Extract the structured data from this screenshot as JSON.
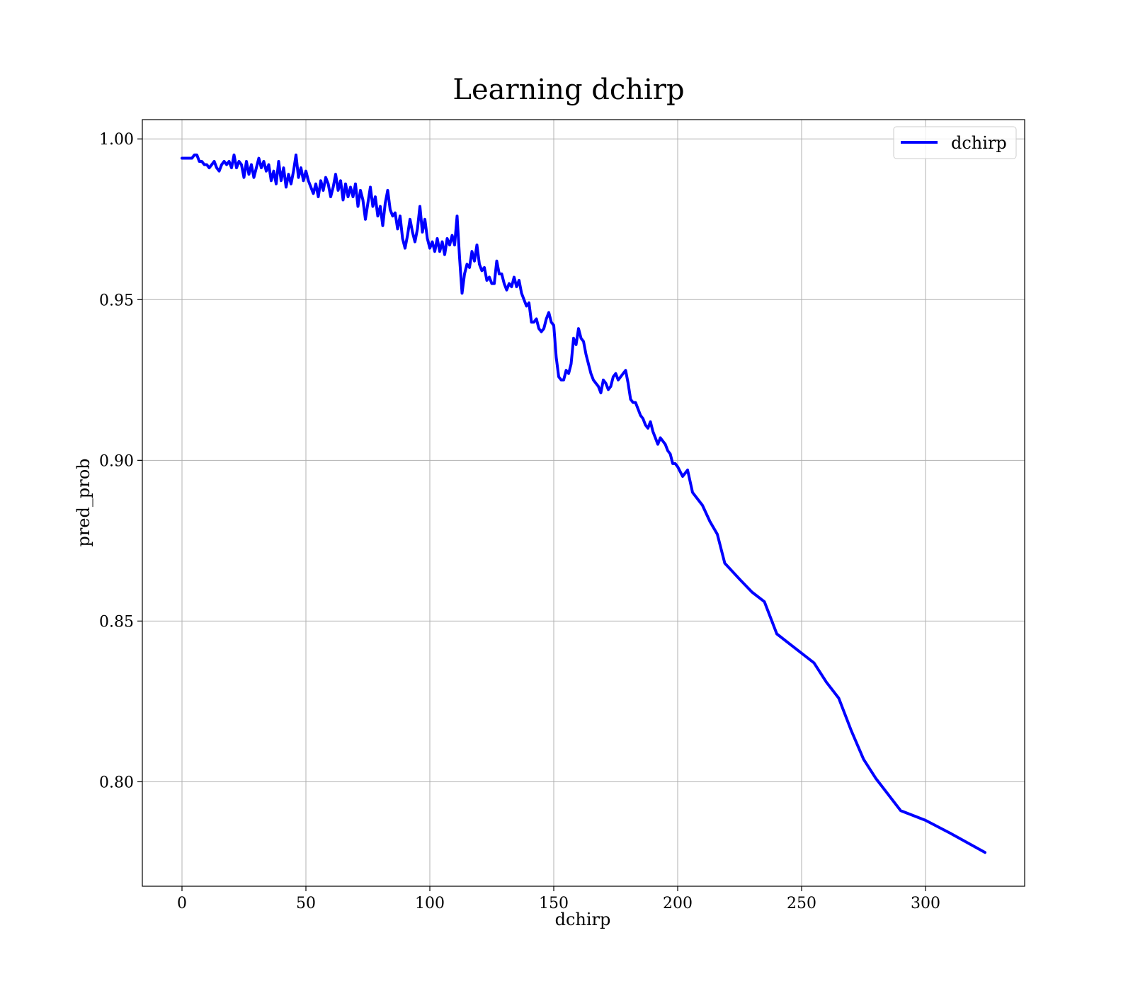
{
  "chart_data": {
    "type": "line",
    "title": "Learning dchirp",
    "xlabel": "dchirp",
    "ylabel": "pred_prob",
    "xlim": [
      -16,
      340
    ],
    "ylim": [
      0.7675,
      1.006
    ],
    "xticks": [
      0,
      50,
      100,
      150,
      200,
      250,
      300
    ],
    "xtick_labels": [
      "0",
      "50",
      "100",
      "150",
      "200",
      "250",
      "300"
    ],
    "yticks": [
      0.8,
      0.85,
      0.9,
      0.95,
      1.0
    ],
    "ytick_labels": [
      "0.80",
      "0.85",
      "0.90",
      "0.95",
      "1.00"
    ],
    "grid": true,
    "legend_position": "top-right",
    "series": [
      {
        "name": "dchirp",
        "color": "#0000ff",
        "points": [
          [
            0,
            0.994
          ],
          [
            2,
            0.994
          ],
          [
            4,
            0.994
          ],
          [
            5,
            0.995
          ],
          [
            6,
            0.995
          ],
          [
            7,
            0.993
          ],
          [
            8,
            0.993
          ],
          [
            9,
            0.992
          ],
          [
            10,
            0.992
          ],
          [
            11,
            0.991
          ],
          [
            12,
            0.992
          ],
          [
            13,
            0.993
          ],
          [
            14,
            0.991
          ],
          [
            15,
            0.99
          ],
          [
            16,
            0.992
          ],
          [
            17,
            0.993
          ],
          [
            18,
            0.992
          ],
          [
            19,
            0.993
          ],
          [
            20,
            0.991
          ],
          [
            21,
            0.995
          ],
          [
            22,
            0.991
          ],
          [
            23,
            0.993
          ],
          [
            24,
            0.992
          ],
          [
            25,
            0.988
          ],
          [
            26,
            0.993
          ],
          [
            27,
            0.989
          ],
          [
            28,
            0.992
          ],
          [
            29,
            0.988
          ],
          [
            30,
            0.991
          ],
          [
            31,
            0.994
          ],
          [
            32,
            0.991
          ],
          [
            33,
            0.993
          ],
          [
            34,
            0.99
          ],
          [
            35,
            0.992
          ],
          [
            36,
            0.987
          ],
          [
            37,
            0.99
          ],
          [
            38,
            0.986
          ],
          [
            39,
            0.993
          ],
          [
            40,
            0.987
          ],
          [
            41,
            0.991
          ],
          [
            42,
            0.985
          ],
          [
            43,
            0.989
          ],
          [
            44,
            0.986
          ],
          [
            45,
            0.99
          ],
          [
            46,
            0.995
          ],
          [
            47,
            0.988
          ],
          [
            48,
            0.991
          ],
          [
            49,
            0.987
          ],
          [
            50,
            0.99
          ],
          [
            51,
            0.987
          ],
          [
            52,
            0.985
          ],
          [
            53,
            0.983
          ],
          [
            54,
            0.986
          ],
          [
            55,
            0.982
          ],
          [
            56,
            0.987
          ],
          [
            57,
            0.984
          ],
          [
            58,
            0.988
          ],
          [
            59,
            0.986
          ],
          [
            60,
            0.982
          ],
          [
            61,
            0.985
          ],
          [
            62,
            0.989
          ],
          [
            63,
            0.984
          ],
          [
            64,
            0.987
          ],
          [
            65,
            0.981
          ],
          [
            66,
            0.986
          ],
          [
            67,
            0.982
          ],
          [
            68,
            0.985
          ],
          [
            69,
            0.982
          ],
          [
            70,
            0.986
          ],
          [
            71,
            0.979
          ],
          [
            72,
            0.984
          ],
          [
            73,
            0.981
          ],
          [
            74,
            0.975
          ],
          [
            75,
            0.98
          ],
          [
            76,
            0.985
          ],
          [
            77,
            0.979
          ],
          [
            78,
            0.982
          ],
          [
            79,
            0.976
          ],
          [
            80,
            0.979
          ],
          [
            81,
            0.973
          ],
          [
            82,
            0.98
          ],
          [
            83,
            0.984
          ],
          [
            84,
            0.978
          ],
          [
            85,
            0.976
          ],
          [
            86,
            0.977
          ],
          [
            87,
            0.972
          ],
          [
            88,
            0.976
          ],
          [
            89,
            0.969
          ],
          [
            90,
            0.966
          ],
          [
            91,
            0.97
          ],
          [
            92,
            0.975
          ],
          [
            93,
            0.971
          ],
          [
            94,
            0.968
          ],
          [
            95,
            0.972
          ],
          [
            96,
            0.979
          ],
          [
            97,
            0.971
          ],
          [
            98,
            0.975
          ],
          [
            99,
            0.969
          ],
          [
            100,
            0.966
          ],
          [
            101,
            0.968
          ],
          [
            102,
            0.965
          ],
          [
            103,
            0.969
          ],
          [
            104,
            0.965
          ],
          [
            105,
            0.968
          ],
          [
            106,
            0.964
          ],
          [
            107,
            0.969
          ],
          [
            108,
            0.967
          ],
          [
            109,
            0.97
          ],
          [
            110,
            0.967
          ],
          [
            111,
            0.976
          ],
          [
            112,
            0.963
          ],
          [
            113,
            0.952
          ],
          [
            114,
            0.958
          ],
          [
            115,
            0.961
          ],
          [
            116,
            0.96
          ],
          [
            117,
            0.965
          ],
          [
            118,
            0.962
          ],
          [
            119,
            0.967
          ],
          [
            120,
            0.961
          ],
          [
            121,
            0.959
          ],
          [
            122,
            0.96
          ],
          [
            123,
            0.956
          ],
          [
            124,
            0.957
          ],
          [
            125,
            0.955
          ],
          [
            126,
            0.955
          ],
          [
            127,
            0.962
          ],
          [
            128,
            0.958
          ],
          [
            129,
            0.958
          ],
          [
            130,
            0.955
          ],
          [
            131,
            0.953
          ],
          [
            132,
            0.955
          ],
          [
            133,
            0.954
          ],
          [
            134,
            0.957
          ],
          [
            135,
            0.954
          ],
          [
            136,
            0.956
          ],
          [
            137,
            0.952
          ],
          [
            138,
            0.95
          ],
          [
            139,
            0.948
          ],
          [
            140,
            0.949
          ],
          [
            141,
            0.943
          ],
          [
            142,
            0.943
          ],
          [
            143,
            0.944
          ],
          [
            144,
            0.941
          ],
          [
            145,
            0.94
          ],
          [
            146,
            0.941
          ],
          [
            147,
            0.944
          ],
          [
            148,
            0.946
          ],
          [
            149,
            0.943
          ],
          [
            150,
            0.942
          ],
          [
            151,
            0.932
          ],
          [
            152,
            0.926
          ],
          [
            153,
            0.925
          ],
          [
            154,
            0.925
          ],
          [
            155,
            0.928
          ],
          [
            156,
            0.927
          ],
          [
            157,
            0.93
          ],
          [
            158,
            0.938
          ],
          [
            159,
            0.936
          ],
          [
            160,
            0.941
          ],
          [
            161,
            0.938
          ],
          [
            162,
            0.937
          ],
          [
            163,
            0.933
          ],
          [
            164,
            0.93
          ],
          [
            165,
            0.927
          ],
          [
            166,
            0.925
          ],
          [
            167,
            0.924
          ],
          [
            168,
            0.923
          ],
          [
            169,
            0.921
          ],
          [
            170,
            0.925
          ],
          [
            171,
            0.924
          ],
          [
            172,
            0.922
          ],
          [
            173,
            0.923
          ],
          [
            174,
            0.926
          ],
          [
            175,
            0.927
          ],
          [
            176,
            0.925
          ],
          [
            177,
            0.926
          ],
          [
            178,
            0.927
          ],
          [
            179,
            0.928
          ],
          [
            180,
            0.924
          ],
          [
            181,
            0.919
          ],
          [
            182,
            0.918
          ],
          [
            183,
            0.918
          ],
          [
            184,
            0.916
          ],
          [
            185,
            0.914
          ],
          [
            186,
            0.913
          ],
          [
            187,
            0.911
          ],
          [
            188,
            0.91
          ],
          [
            189,
            0.912
          ],
          [
            190,
            0.909
          ],
          [
            191,
            0.907
          ],
          [
            192,
            0.905
          ],
          [
            193,
            0.907
          ],
          [
            194,
            0.906
          ],
          [
            195,
            0.905
          ],
          [
            196,
            0.903
          ],
          [
            197,
            0.902
          ],
          [
            198,
            0.899
          ],
          [
            199,
            0.899
          ],
          [
            200,
            0.898
          ],
          [
            202,
            0.895
          ],
          [
            204,
            0.897
          ],
          [
            206,
            0.89
          ],
          [
            210,
            0.886
          ],
          [
            213,
            0.881
          ],
          [
            216,
            0.877
          ],
          [
            219,
            0.868
          ],
          [
            225,
            0.863
          ],
          [
            230,
            0.859
          ],
          [
            235,
            0.856
          ],
          [
            240,
            0.846
          ],
          [
            245,
            0.843
          ],
          [
            250,
            0.84
          ],
          [
            255,
            0.837
          ],
          [
            260,
            0.831
          ],
          [
            265,
            0.826
          ],
          [
            270,
            0.816
          ],
          [
            275,
            0.807
          ],
          [
            280,
            0.801
          ],
          [
            290,
            0.791
          ],
          [
            300,
            0.788
          ],
          [
            310,
            0.784
          ],
          [
            324,
            0.778
          ]
        ]
      }
    ]
  }
}
